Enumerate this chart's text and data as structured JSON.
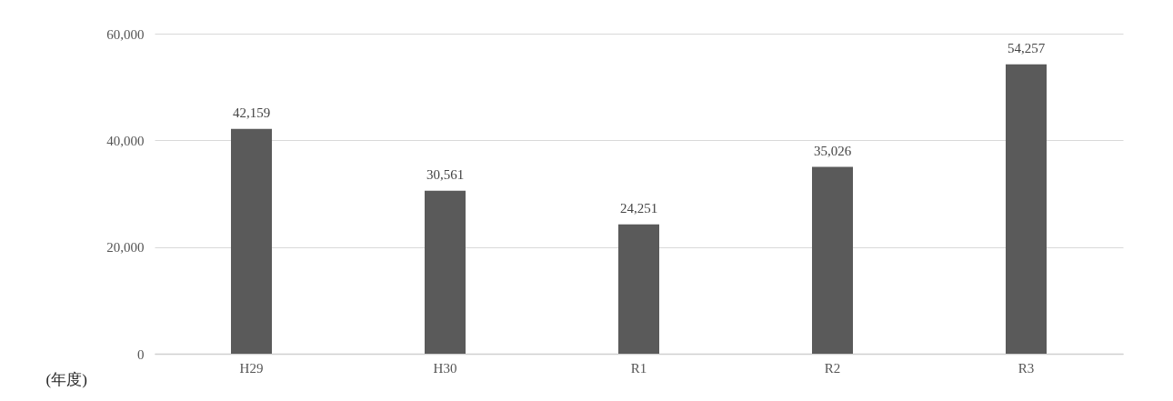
{
  "chart_data": {
    "type": "bar",
    "xlabel": "(年度)",
    "categories": [
      "H29",
      "H30",
      "R1",
      "R2",
      "R3"
    ],
    "values": [
      42159,
      30561,
      24251,
      35026,
      54257
    ],
    "value_labels": [
      "42,159",
      "30,561",
      "24,251",
      "35,026",
      "54,257"
    ],
    "color": "#5a5a5a",
    "ylim": [
      0,
      60000
    ],
    "yticks": [
      0,
      {
        "value": 20000,
        "label": "20,000"
      },
      {
        "value": 40000,
        "label": "40,000"
      },
      {
        "value": 60000,
        "label": "60,000"
      }
    ],
    "grid": "y"
  }
}
